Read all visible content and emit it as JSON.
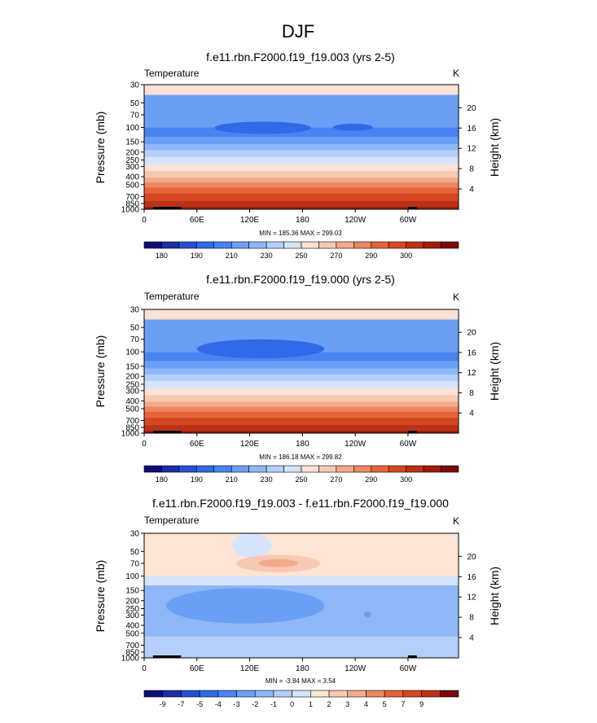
{
  "page_title": "DJF",
  "colors": {
    "temp_fills": [
      "#0d0d7a",
      "#1a2fa8",
      "#2550d4",
      "#2f6ae8",
      "#4a84f2",
      "#6b9ff5",
      "#8fb7f7",
      "#b4cff9",
      "#d6e4fb",
      "#fbe2d5",
      "#f8c9b2",
      "#f4aa8a",
      "#ee8760",
      "#e6643a",
      "#d64820",
      "#bf3014",
      "#9f1c0c",
      "#7a0a06"
    ],
    "diff_fills": [
      "#0d0d7a",
      "#1a2fa8",
      "#2550d4",
      "#2f6ae8",
      "#4a84f2",
      "#6b9ff5",
      "#8fb7f7",
      "#b4cff9",
      "#d6e4fb",
      "#fde4d4",
      "#f8c9b2",
      "#f4aa8a",
      "#ee8760",
      "#e6643a",
      "#d64820",
      "#bf3014",
      "#7a0a06"
    ],
    "topo": "#000000"
  },
  "chart_data": [
    {
      "type": "contour",
      "title": "f.e11.rbn.F2000.f19_f19.003 (yrs 2-5)",
      "field_label": "Temperature",
      "units": "K",
      "ylabel": "Pressure (mb)",
      "ylabel_right": "Height (km)",
      "x_ticks": [
        "0",
        "60E",
        "120E",
        "180",
        "120W",
        "60W"
      ],
      "x_tick_values": [
        0,
        60,
        120,
        180,
        240,
        300
      ],
      "xlim": [
        0,
        357.5
      ],
      "y_ticks": [
        30,
        50,
        70,
        100,
        150,
        200,
        250,
        300,
        400,
        500,
        700,
        850,
        1000
      ],
      "ylim": [
        1000,
        30
      ],
      "height_ticks_km": [
        4,
        8,
        12,
        16,
        20
      ],
      "stats": "MIN = 185.36  MAX = 299.03",
      "colorbar_labels": [
        "180",
        "190",
        "210",
        "230",
        "250",
        "270",
        "290",
        "300"
      ],
      "colorbar_levels": [
        180,
        185,
        190,
        200,
        210,
        220,
        230,
        240,
        250,
        260,
        270,
        280,
        290,
        295,
        300,
        305,
        310
      ],
      "bands": [
        [
          30,
          40,
          9
        ],
        [
          40,
          100,
          5
        ],
        [
          100,
          130,
          4
        ],
        [
          130,
          160,
          5
        ],
        [
          160,
          190,
          6
        ],
        [
          190,
          230,
          7
        ],
        [
          230,
          280,
          8
        ],
        [
          280,
          340,
          9
        ],
        [
          340,
          410,
          10
        ],
        [
          410,
          470,
          11
        ],
        [
          470,
          540,
          12
        ],
        [
          540,
          640,
          13
        ],
        [
          640,
          780,
          14
        ],
        [
          780,
          920,
          15
        ],
        [
          920,
          1000,
          16
        ]
      ],
      "cold_pools": [
        {
          "lon": [
            80,
            190
          ],
          "p": [
            85,
            120
          ],
          "fill": 3
        },
        {
          "lon": [
            215,
            260
          ],
          "p": [
            90,
            110
          ],
          "fill": 3
        }
      ],
      "warm_pools": []
    },
    {
      "type": "contour",
      "title": "f.e11.rbn.F2000.f19_f19.000 (yrs 2-5)",
      "field_label": "Temperature",
      "units": "K",
      "ylabel": "Pressure (mb)",
      "ylabel_right": "Height (km)",
      "x_ticks": [
        "0",
        "60E",
        "120E",
        "180",
        "120W",
        "60W"
      ],
      "x_tick_values": [
        0,
        60,
        120,
        180,
        240,
        300
      ],
      "xlim": [
        0,
        357.5
      ],
      "y_ticks": [
        30,
        50,
        70,
        100,
        150,
        200,
        250,
        300,
        400,
        500,
        700,
        850,
        1000
      ],
      "ylim": [
        1000,
        30
      ],
      "height_ticks_km": [
        4,
        8,
        12,
        16,
        20
      ],
      "stats": "MIN = 186.18  MAX = 299.82",
      "colorbar_labels": [
        "180",
        "190",
        "210",
        "230",
        "250",
        "270",
        "290",
        "300"
      ],
      "colorbar_levels": [
        180,
        185,
        190,
        200,
        210,
        220,
        230,
        240,
        250,
        260,
        270,
        280,
        290,
        295,
        300,
        305,
        310
      ],
      "bands": [
        [
          30,
          40,
          9
        ],
        [
          40,
          100,
          5
        ],
        [
          100,
          130,
          4
        ],
        [
          130,
          160,
          5
        ],
        [
          160,
          190,
          6
        ],
        [
          190,
          230,
          7
        ],
        [
          230,
          280,
          8
        ],
        [
          280,
          340,
          9
        ],
        [
          340,
          410,
          10
        ],
        [
          410,
          470,
          11
        ],
        [
          470,
          540,
          12
        ],
        [
          540,
          640,
          13
        ],
        [
          640,
          780,
          14
        ],
        [
          780,
          920,
          15
        ],
        [
          920,
          1000,
          16
        ]
      ],
      "cold_pools": [
        {
          "lon": [
            60,
            205
          ],
          "p": [
            70,
            120
          ],
          "fill": 3
        }
      ],
      "warm_pools": []
    },
    {
      "type": "contour",
      "title": "f.e11.rbn.F2000.f19_f19.003 - f.e11.rbn.F2000.f19_f19.000",
      "field_label": "Temperature",
      "units": "K",
      "ylabel": "Pressure (mb)",
      "ylabel_right": "Height (km)",
      "x_ticks": [
        "0",
        "60E",
        "120E",
        "180",
        "120W",
        "60W"
      ],
      "x_tick_values": [
        0,
        60,
        120,
        180,
        240,
        300
      ],
      "xlim": [
        0,
        357.5
      ],
      "y_ticks": [
        30,
        50,
        70,
        100,
        150,
        200,
        250,
        300,
        400,
        500,
        700,
        850,
        1000
      ],
      "ylim": [
        1000,
        30
      ],
      "height_ticks_km": [
        4,
        8,
        12,
        16,
        20
      ],
      "stats": "MIN = -3.84  MAX = 3.54",
      "colorbar_labels": [
        "-9",
        "-7",
        "-5",
        "-4",
        "-3",
        "-2",
        "-1",
        "0",
        "1",
        "2",
        "3",
        "4",
        "5",
        "7",
        "9"
      ],
      "colorbar_levels": [
        -9,
        -7,
        -5,
        -4,
        -3,
        -2,
        -1,
        0,
        1,
        2,
        3,
        4,
        5,
        7,
        9
      ],
      "bands": [
        [
          30,
          100,
          9
        ],
        [
          100,
          130,
          8
        ],
        [
          130,
          550,
          6
        ],
        [
          550,
          1000,
          7
        ]
      ],
      "cold_pools": [
        {
          "lon": [
            25,
            205
          ],
          "p": [
            140,
            380
          ],
          "fill": 5
        },
        {
          "lon": [
            100,
            145
          ],
          "p": [
            30,
            60
          ],
          "fill": 8
        },
        {
          "lon": [
            250,
            258
          ],
          "p": [
            270,
            320
          ],
          "fill": 5
        }
      ],
      "warm_pools": [
        {
          "lon": [
            105,
            200
          ],
          "p": [
            55,
            90
          ],
          "fill": 10
        },
        {
          "lon": [
            130,
            175
          ],
          "p": [
            62,
            78
          ],
          "fill": 11
        }
      ]
    }
  ]
}
